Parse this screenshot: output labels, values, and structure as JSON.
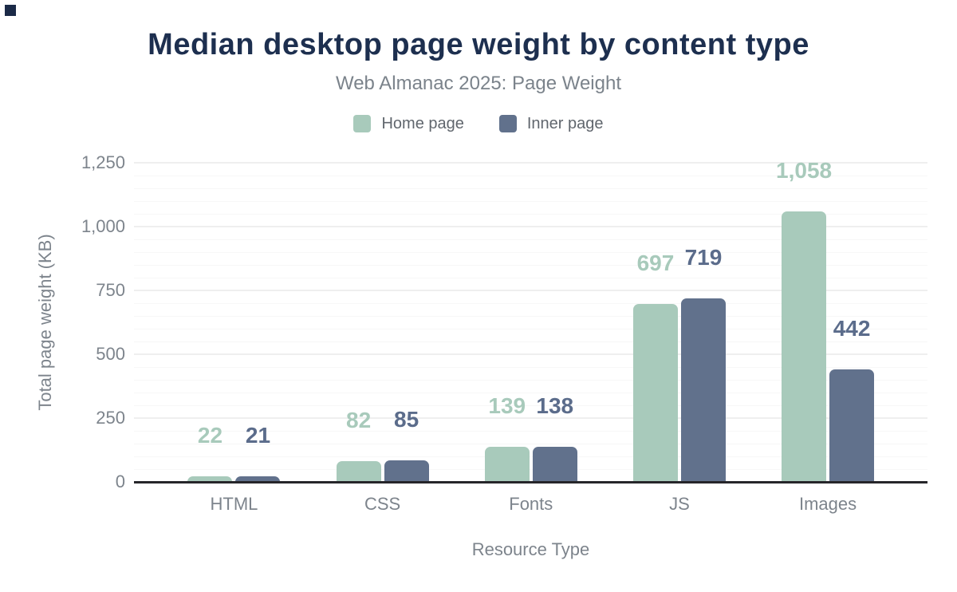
{
  "page": {
    "title": "Median desktop page weight by content type",
    "subtitle": "Web Almanac 2025: Page Weight",
    "title_color": "#1d2f4f"
  },
  "legend": {
    "items": [
      {
        "label": "Home page",
        "color": "#a8cabb"
      },
      {
        "label": "Inner page",
        "color": "#61718c"
      }
    ]
  },
  "chart_data": {
    "type": "bar",
    "title": "Median desktop page weight by content type",
    "subtitle": "Web Almanac 2025: Page Weight",
    "categories": [
      "HTML",
      "CSS",
      "Fonts",
      "JS",
      "Images"
    ],
    "series": [
      {
        "name": "Home page",
        "color": "#a8cabb",
        "label_color": "#a8cabb",
        "values": [
          22,
          82,
          139,
          697,
          1058
        ]
      },
      {
        "name": "Inner page",
        "color": "#61718c",
        "label_color": "#5b6c8b",
        "values": [
          21,
          85,
          138,
          719,
          442
        ]
      }
    ],
    "xlabel": "Resource Type",
    "ylabel": "Total page weight (KB)",
    "ylim": [
      0,
      1250
    ],
    "yticks": [
      0,
      250,
      500,
      750,
      1000,
      1250
    ],
    "ytick_labels": [
      "0",
      "250",
      "500",
      "750",
      "1,000",
      "1,250"
    ],
    "minor_tick_step": 50,
    "grid": "on",
    "legend_position": "top",
    "value_label_format": "thousands-comma"
  }
}
